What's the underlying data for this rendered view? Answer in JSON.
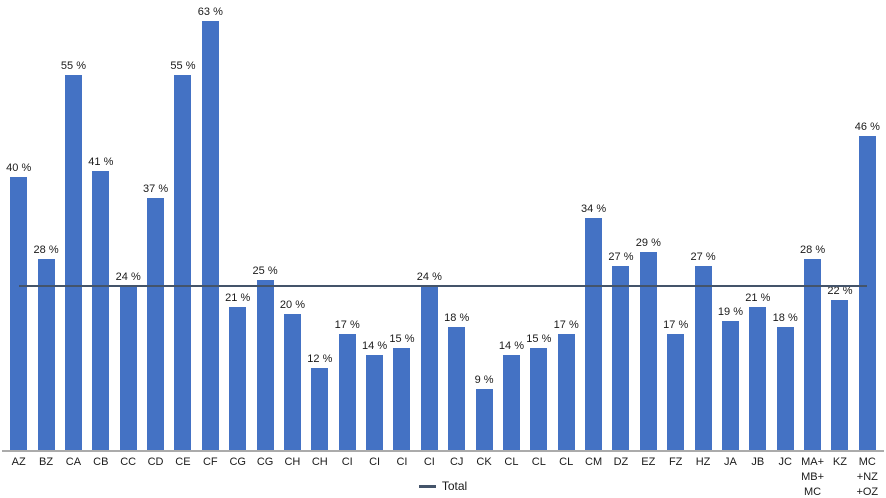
{
  "chart_data": {
    "type": "bar",
    "title": "",
    "xlabel": "",
    "ylabel": "",
    "ylim": [
      0,
      66
    ],
    "grid": false,
    "legend_position": "bottom-center",
    "unit": "%",
    "bar_color": "#4472C4",
    "line_color": "#44546A",
    "axis_color": "#ababab",
    "label_color": "#1a1a1a",
    "categories": [
      "AZ",
      "BZ",
      "CA",
      "CB",
      "CC",
      "CD",
      "CE",
      "CF",
      "CG",
      "CG",
      "CH",
      "CH",
      "CI",
      "CI",
      "CI",
      "CI",
      "CJ",
      "CK",
      "CL",
      "CL",
      "CL",
      "CM",
      "DZ",
      "EZ",
      "FZ",
      "HZ",
      "JA",
      "JB",
      "JC",
      "MA+\nMB+\nMC",
      "KZ",
      "MC\n+NZ\n+OZ"
    ],
    "values": [
      40,
      28,
      55,
      41,
      24,
      37,
      55,
      63,
      21,
      25,
      20,
      12,
      17,
      14,
      15,
      24,
      18,
      9,
      14,
      15,
      17,
      34,
      27,
      29,
      17,
      27,
      19,
      21,
      18,
      28,
      22,
      46
    ],
    "value_labels": [
      "40 %",
      "28 %",
      "55 %",
      "41 %",
      "24 %",
      "37 %",
      "55 %",
      "63 %",
      "21 %",
      "25 %",
      "20 %",
      "12 %",
      "17 %",
      "14 %",
      "15 %",
      "24 %",
      "18 %",
      "9 %",
      "14 %",
      "15 %",
      "17 %",
      "34 %",
      "27 %",
      "29 %",
      "17 %",
      "27 %",
      "19 %",
      "21 %",
      "18 %",
      "28 %",
      "22 %",
      "46 %"
    ],
    "total_line": {
      "label": "Total",
      "value": 24
    }
  }
}
